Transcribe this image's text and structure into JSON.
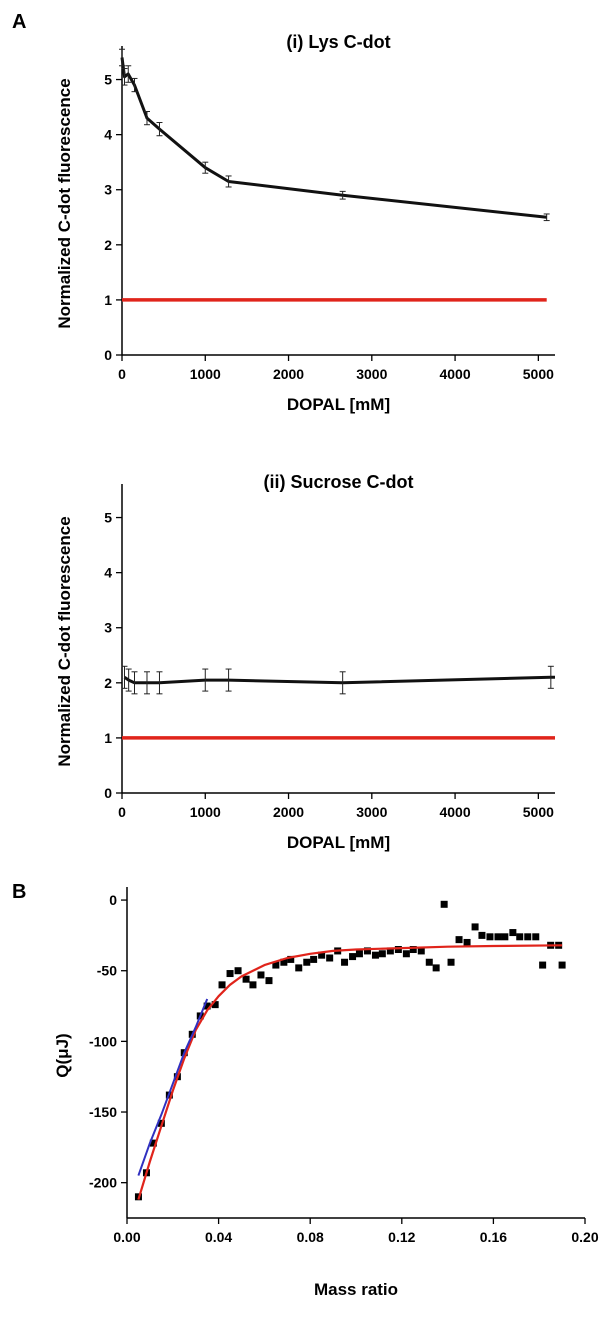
{
  "figure": {
    "panel_a_letter": "A",
    "panel_b_letter": "B"
  },
  "chart_data": [
    {
      "type": "line",
      "panel": "A (i)",
      "title": "(i) Lys C-dot",
      "xlabel": "DOPAL [mM]",
      "ylabel": "Normalized C-dot fluorescence",
      "xlim": [
        0,
        5200
      ],
      "ylim": [
        0,
        5.5
      ],
      "xticks": [
        0,
        1000,
        2000,
        3000,
        4000,
        5000
      ],
      "yticks": [
        0,
        1,
        2,
        3,
        4,
        5
      ],
      "grid": false,
      "series": [
        {
          "color": "#111111",
          "x": [
            0,
            30,
            75,
            150,
            300,
            450,
            1000,
            1280,
            2650,
            5100
          ],
          "y": [
            5.4,
            5.05,
            5.1,
            4.9,
            4.3,
            4.1,
            3.4,
            3.15,
            2.9,
            2.5
          ],
          "err": [
            0.15,
            0.15,
            0.15,
            0.12,
            0.12,
            0.12,
            0.1,
            0.1,
            0.07,
            0.06
          ]
        },
        {
          "color": "#e0241b",
          "x": [
            0,
            5100
          ],
          "y": [
            1.0,
            1.0
          ]
        }
      ]
    },
    {
      "type": "line",
      "panel": "A (ii)",
      "title": "(ii) Sucrose C-dot",
      "xlabel": "DOPAL [mM]",
      "ylabel": "Normalized C-dot fluorescence",
      "xlim": [
        0,
        5200
      ],
      "ylim": [
        0,
        5.5
      ],
      "xticks": [
        0,
        1000,
        2000,
        3000,
        4000,
        5000
      ],
      "yticks": [
        0,
        1,
        2,
        3,
        4,
        5
      ],
      "grid": false,
      "series": [
        {
          "color": "#111111",
          "x": [
            30,
            80,
            150,
            300,
            450,
            1000,
            1280,
            2650,
            5150,
            5200
          ],
          "y": [
            2.1,
            2.05,
            2.0,
            2.0,
            2.0,
            2.05,
            2.05,
            2.0,
            2.1,
            2.1
          ],
          "err": [
            0.2,
            0.2,
            0.2,
            0.2,
            0.2,
            0.2,
            0.2,
            0.2,
            0.2,
            0
          ]
        },
        {
          "color": "#e0241b",
          "x": [
            0,
            5200
          ],
          "y": [
            1.0,
            1.0
          ]
        }
      ]
    },
    {
      "type": "scatter",
      "panel": "B",
      "title": "",
      "xlabel": "Mass ratio",
      "ylabel": "Q(μJ)",
      "xlim": [
        0,
        0.2
      ],
      "ylim": [
        -225,
        5
      ],
      "xticks": [
        0.0,
        0.04,
        0.08,
        0.12,
        0.16,
        0.2
      ],
      "xtick_labels": [
        "0.00",
        "0.04",
        "0.08",
        "0.12",
        "0.16",
        "0.20"
      ],
      "yticks": [
        0,
        -50,
        -100,
        -150,
        -200
      ],
      "grid": false,
      "series": [
        {
          "marker": "square",
          "color": "#000000",
          "x": [
            0.005,
            0.0085,
            0.0115,
            0.015,
            0.0185,
            0.022,
            0.025,
            0.0285,
            0.032,
            0.035,
            0.0385,
            0.0415,
            0.045,
            0.0485,
            0.052,
            0.055,
            0.0585,
            0.062,
            0.065,
            0.0685,
            0.0715,
            0.075,
            0.0785,
            0.0815,
            0.085,
            0.0885,
            0.092,
            0.095,
            0.0985,
            0.1015,
            0.105,
            0.1085,
            0.1115,
            0.115,
            0.1185,
            0.122,
            0.125,
            0.1285,
            0.132,
            0.135,
            0.1385,
            0.1415,
            0.145,
            0.1485,
            0.152,
            0.155,
            0.1585,
            0.162,
            0.165,
            0.1685,
            0.1715,
            0.175,
            0.1785,
            0.1815,
            0.185,
            0.1885,
            0.19
          ],
          "y": [
            -210,
            -193,
            -172,
            -158,
            -138,
            -125,
            -108,
            -95,
            -82,
            -75,
            -74,
            -60,
            -52,
            -50,
            -56,
            -60,
            -53,
            -57,
            -46,
            -44,
            -42,
            -48,
            -44,
            -42,
            -39,
            -41,
            -36,
            -44,
            -40,
            -38,
            -36,
            -39,
            -38,
            -36,
            -35,
            -38,
            -35,
            -36,
            -44,
            -48,
            -3,
            -44,
            -28,
            -30,
            -19,
            -25,
            -26,
            -26,
            -26,
            -23,
            -26,
            -26,
            -26,
            -46,
            -32,
            -32,
            -46
          ]
        },
        {
          "name": "fit",
          "line": true,
          "color": "#e0241b",
          "x": [
            0.005,
            0.01,
            0.015,
            0.02,
            0.025,
            0.03,
            0.035,
            0.04,
            0.045,
            0.05,
            0.06,
            0.07,
            0.08,
            0.09,
            0.1,
            0.12,
            0.14,
            0.16,
            0.19
          ],
          "y": [
            -212,
            -185,
            -160,
            -135,
            -112,
            -92,
            -78,
            -68,
            -60,
            -54,
            -46,
            -41,
            -38,
            -36,
            -35,
            -34,
            -33,
            -32.5,
            -32
          ]
        },
        {
          "line": true,
          "color": "#3030c0",
          "x": [
            0.005,
            0.01,
            0.015,
            0.02,
            0.025,
            0.03,
            0.035
          ],
          "y": [
            -195,
            -172,
            -152,
            -130,
            -108,
            -90,
            -70
          ]
        }
      ]
    }
  ]
}
